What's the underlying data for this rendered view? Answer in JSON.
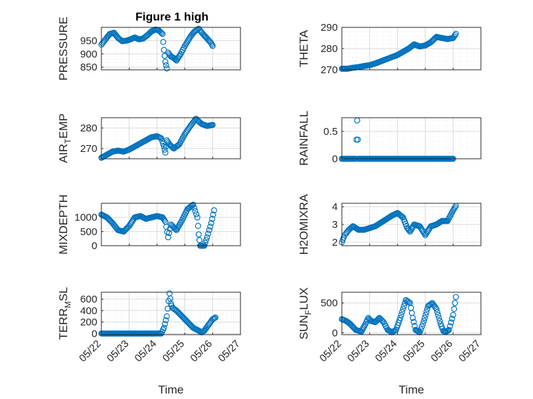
{
  "title": "Figure 1 high",
  "colors": {
    "marker": "#0072BD",
    "axes": "#262626",
    "grid": "#d9d9d9",
    "background": "#ffffff"
  },
  "chart_data": [
    {
      "type": "scatter",
      "ylabel": "PRESSURE",
      "xlabel": "",
      "xlim": [
        "05/22",
        "05/27"
      ],
      "ylim": [
        840,
        1000
      ],
      "yticks": [
        850,
        900,
        950
      ],
      "xtick_labels": [],
      "grid": true,
      "minor_grid": true,
      "x": [
        22.0,
        22.15,
        22.3,
        22.45,
        22.6,
        22.75,
        22.9,
        23.05,
        23.2,
        23.35,
        23.5,
        23.65,
        23.8,
        23.95,
        24.05,
        24.2,
        24.25,
        24.3,
        24.35,
        24.4,
        24.5,
        24.6,
        24.7,
        24.85,
        25.0,
        25.2,
        25.35,
        25.5,
        25.65,
        25.8,
        25.95,
        26.0
      ],
      "y": [
        935,
        955,
        975,
        980,
        960,
        948,
        950,
        955,
        962,
        955,
        958,
        970,
        985,
        992,
        990,
        975,
        915,
        870,
        845,
        905,
        890,
        885,
        875,
        900,
        930,
        965,
        985,
        995,
        975,
        958,
        940,
        930
      ]
    },
    {
      "type": "scatter",
      "ylabel": "THETA",
      "xlabel": "",
      "xlim": [
        "05/22",
        "05/27"
      ],
      "ylim": [
        270,
        290
      ],
      "yticks": [
        270,
        280,
        290
      ],
      "xtick_labels": [],
      "grid": true,
      "minor_grid": true,
      "x": [
        22.0,
        22.2,
        22.4,
        22.6,
        22.8,
        23.0,
        23.2,
        23.4,
        23.6,
        23.8,
        24.0,
        24.2,
        24.4,
        24.6,
        24.8,
        25.0,
        25.2,
        25.4,
        25.6,
        25.8,
        26.0,
        26.1
      ],
      "y": [
        270.5,
        270.5,
        271,
        271.3,
        271.8,
        272.2,
        273,
        274,
        275,
        276,
        277,
        278.5,
        280,
        282,
        281,
        281.5,
        283,
        285.5,
        285,
        284.5,
        285,
        287
      ]
    },
    {
      "type": "scatter",
      "ylabel": "AIR_TEMP",
      "xlabel": "",
      "xlim": [
        "05/22",
        "05/27"
      ],
      "ylim": [
        265,
        285
      ],
      "yticks": [
        270,
        280
      ],
      "xtick_labels": [],
      "grid": true,
      "minor_grid": true,
      "x": [
        22.0,
        22.2,
        22.4,
        22.6,
        22.8,
        23.0,
        23.2,
        23.4,
        23.6,
        23.8,
        24.0,
        24.15,
        24.25,
        24.3,
        24.35,
        24.45,
        24.6,
        24.8,
        25.0,
        25.2,
        25.4,
        25.6,
        25.8,
        26.0
      ],
      "y": [
        265.5,
        267,
        268.5,
        269,
        268.5,
        269.5,
        271,
        272.5,
        274,
        275.5,
        276,
        275,
        271,
        268,
        274,
        272,
        270,
        272,
        277,
        281,
        284.5,
        282,
        281,
        281.5
      ]
    },
    {
      "type": "scatter",
      "ylabel": "RAINFALL",
      "xlabel": "",
      "xlim": [
        "05/22",
        "05/27"
      ],
      "ylim": [
        0,
        0.75
      ],
      "yticks": [
        0,
        0.5
      ],
      "xtick_labels": [],
      "grid": true,
      "minor_grid": true,
      "x": [
        22.0,
        22.3,
        22.5,
        22.55,
        22.6,
        22.8,
        23.0,
        23.3,
        23.6,
        23.9,
        24.2,
        24.5,
        24.8,
        25.1,
        25.4,
        25.7,
        26.0
      ],
      "y": [
        0,
        0,
        0,
        0.7,
        0,
        0,
        0,
        0,
        0,
        0,
        0,
        0,
        0,
        0,
        0,
        0,
        0
      ]
    },
    {
      "type": "scatter",
      "ylabel": "MIXDEPTH",
      "xlabel": "",
      "xlim": [
        "05/22",
        "05/27"
      ],
      "ylim": [
        0,
        1500
      ],
      "yticks": [
        0,
        500,
        1000
      ],
      "xtick_labels": [],
      "grid": true,
      "minor_grid": true,
      "x": [
        22.0,
        22.2,
        22.4,
        22.6,
        22.8,
        23.0,
        23.2,
        23.4,
        23.6,
        23.8,
        24.0,
        24.2,
        24.3,
        24.4,
        24.5,
        24.7,
        24.9,
        25.1,
        25.3,
        25.45,
        25.5,
        25.55,
        25.6,
        25.7,
        25.8,
        25.95,
        26.05
      ],
      "y": [
        1100,
        1000,
        800,
        550,
        500,
        700,
        1000,
        1050,
        950,
        1000,
        1050,
        1000,
        850,
        300,
        750,
        550,
        900,
        1300,
        1450,
        1000,
        400,
        0,
        0,
        0,
        300,
        800,
        1250
      ]
    },
    {
      "type": "scatter",
      "ylabel": "H2OMIXRA",
      "xlabel": "",
      "xlim": [
        "05/22",
        "05/27"
      ],
      "ylim": [
        1.8,
        4.2
      ],
      "yticks": [
        2,
        3,
        4
      ],
      "xtick_labels": [],
      "grid": true,
      "minor_grid": true,
      "x": [
        22.0,
        22.1,
        22.25,
        22.4,
        22.6,
        22.8,
        23.0,
        23.2,
        23.4,
        23.6,
        23.8,
        24.0,
        24.2,
        24.35,
        24.45,
        24.6,
        24.8,
        25.0,
        25.2,
        25.4,
        25.6,
        25.8,
        26.0,
        26.1
      ],
      "y": [
        2.0,
        2.4,
        2.7,
        2.9,
        2.7,
        2.7,
        2.8,
        2.9,
        3.1,
        3.3,
        3.5,
        3.65,
        3.4,
        2.8,
        2.6,
        3.0,
        2.9,
        2.4,
        2.9,
        3.0,
        3.2,
        3.2,
        3.8,
        4.05
      ]
    },
    {
      "type": "scatter",
      "ylabel": "TERR_MSL",
      "xlabel": "Time",
      "xlim": [
        "05/22",
        "05/27"
      ],
      "ylim": [
        -20,
        720
      ],
      "yticks": [
        0,
        200,
        400,
        600
      ],
      "xtick_labels": [
        "05/22",
        "05/23",
        "05/24",
        "05/25",
        "05/26",
        "05/27"
      ],
      "grid": true,
      "minor_grid": true,
      "x": [
        22.0,
        22.25,
        22.5,
        22.75,
        23.0,
        23.25,
        23.5,
        23.75,
        24.0,
        24.15,
        24.25,
        24.35,
        24.45,
        24.5,
        24.55,
        24.7,
        24.9,
        25.1,
        25.3,
        25.5,
        25.6,
        25.7,
        25.85,
        26.0,
        26.1
      ],
      "y": [
        0,
        0,
        0,
        0,
        0,
        0,
        0,
        0,
        0,
        0,
        100,
        300,
        700,
        520,
        450,
        400,
        300,
        200,
        100,
        50,
        20,
        50,
        150,
        250,
        280
      ]
    },
    {
      "type": "scatter",
      "ylabel": "SUN_FLUX",
      "xlabel": "Time",
      "xlim": [
        "05/22",
        "05/27"
      ],
      "ylim": [
        -30,
        680
      ],
      "yticks": [
        0,
        500
      ],
      "xtick_labels": [
        "05/22",
        "05/23",
        "05/24",
        "05/25",
        "05/26",
        "05/27"
      ],
      "grid": true,
      "minor_grid": true,
      "x": [
        22.0,
        22.15,
        22.3,
        22.5,
        22.7,
        22.85,
        22.95,
        23.05,
        23.2,
        23.35,
        23.5,
        23.65,
        23.8,
        23.95,
        24.1,
        24.3,
        24.45,
        24.55,
        24.65,
        24.8,
        24.95,
        25.1,
        25.25,
        25.4,
        25.55,
        25.65,
        25.75,
        25.85,
        26.0,
        26.1
      ],
      "y": [
        230,
        200,
        150,
        50,
        20,
        150,
        250,
        200,
        180,
        250,
        180,
        50,
        10,
        50,
        250,
        550,
        500,
        250,
        50,
        10,
        200,
        450,
        500,
        400,
        150,
        30,
        20,
        50,
        300,
        600
      ]
    }
  ]
}
